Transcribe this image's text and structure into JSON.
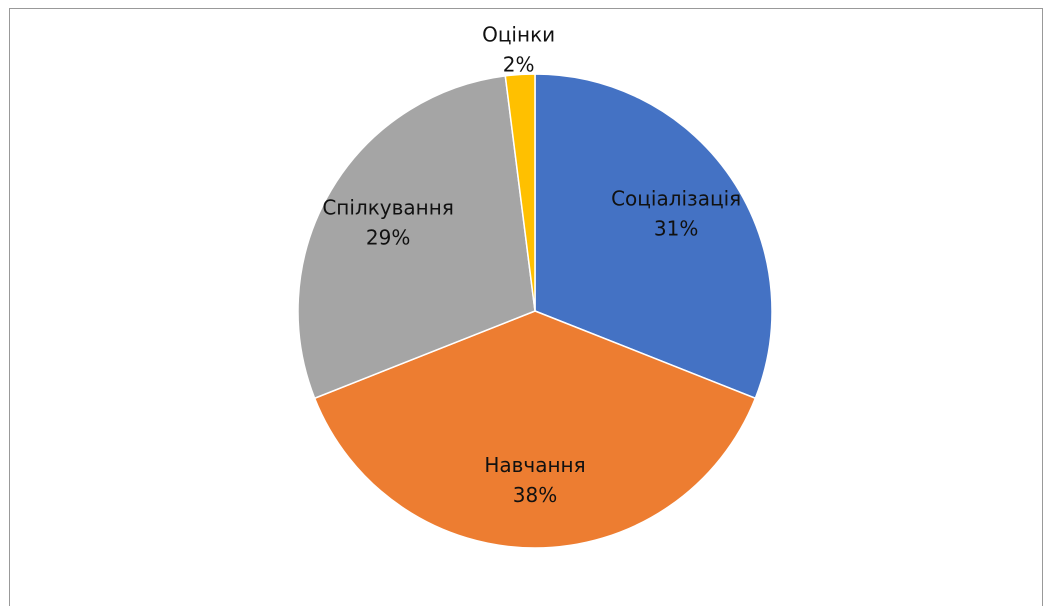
{
  "chart_data": {
    "type": "pie",
    "categories": [
      "Соціалізація",
      "Навчання",
      "Спілкування",
      "Оцінки"
    ],
    "values": [
      31,
      38,
      29,
      2
    ],
    "value_labels": [
      "31%",
      "38%",
      "29%",
      "2%"
    ],
    "colors": [
      "#4472c4",
      "#ed7d31",
      "#a5a5a5",
      "#ffc000"
    ]
  }
}
